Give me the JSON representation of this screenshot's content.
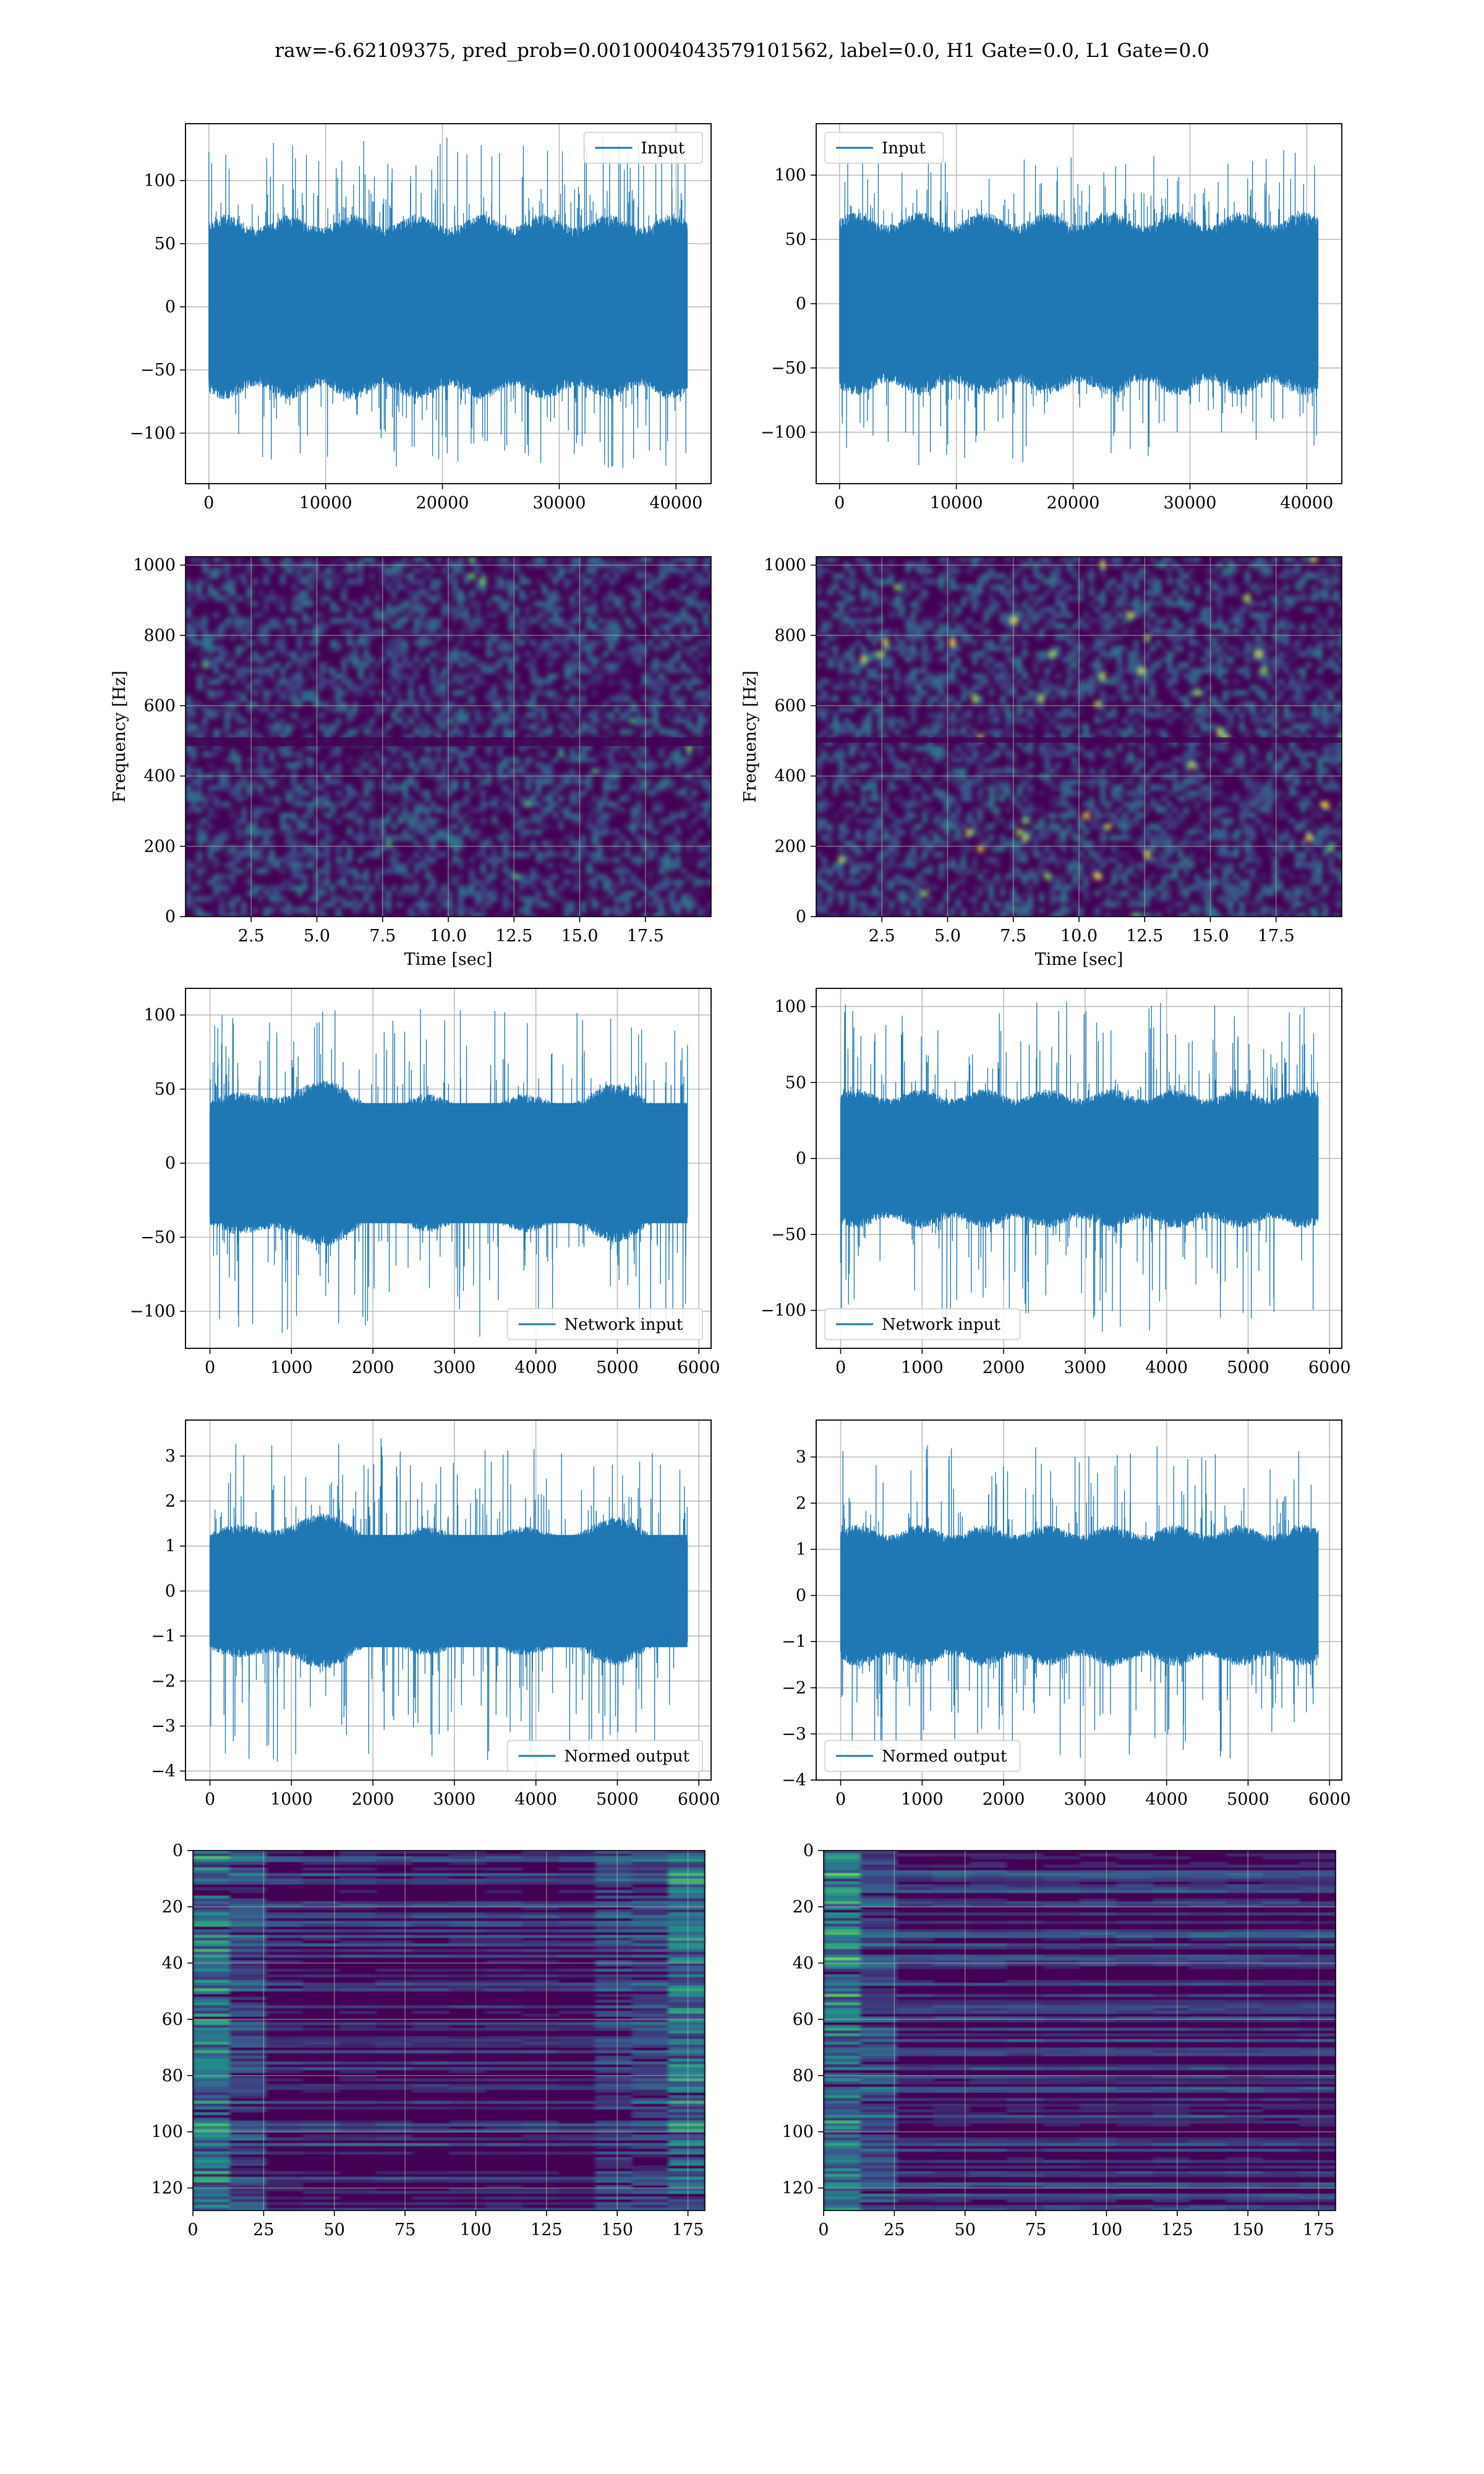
{
  "suptitle": "raw=-6.62109375, pred_prob=0.0010004043579101562, label=0.0, H1 Gate=0.0, L1 Gate=0.0",
  "colors": {
    "series": "#1f77b4",
    "grid": "#b0b0b0",
    "viridis_dark": "#440154",
    "viridis_mid": "#3b528b",
    "viridis_teal": "#21918c",
    "viridis_green": "#5ec962",
    "viridis_yellow": "#fde725"
  },
  "chart_data": [
    {
      "id": "h1-input",
      "type": "line",
      "legend": "Input",
      "legend_loc": "upper right",
      "grid": true,
      "xlim": [
        -2000,
        43000
      ],
      "ylim": [
        -140,
        145
      ],
      "xticks": [
        0,
        10000,
        20000,
        30000,
        40000
      ],
      "yticks": [
        -100,
        -50,
        0,
        50,
        100
      ],
      "x_range": [
        0,
        40960
      ],
      "band": [
        -72,
        72
      ],
      "spike_max": 135,
      "spike_min": -128,
      "xlabel": "",
      "ylabel": ""
    },
    {
      "id": "l1-input",
      "type": "line",
      "legend": "Input",
      "legend_loc": "upper left",
      "grid": true,
      "xlim": [
        -2000,
        43000
      ],
      "ylim": [
        -140,
        140
      ],
      "xticks": [
        0,
        10000,
        20000,
        30000,
        40000
      ],
      "yticks": [
        -100,
        -50,
        0,
        50,
        100
      ],
      "x_range": [
        0,
        40960
      ],
      "band": [
        -70,
        70
      ],
      "spike_max": 120,
      "spike_min": -128,
      "xlabel": "",
      "ylabel": ""
    },
    {
      "id": "h1-spectrogram",
      "type": "heatmap",
      "grid": true,
      "xlim": [
        0,
        20
      ],
      "ylim": [
        0,
        1024
      ],
      "xticks": [
        2.5,
        5.0,
        7.5,
        10.0,
        12.5,
        15.0,
        17.5
      ],
      "yticks": [
        0,
        200,
        400,
        600,
        800,
        1000
      ],
      "xlabel": "Time [sec]",
      "ylabel": "Frequency [Hz]",
      "colormap": "viridis",
      "dark_band_hz": [
        485,
        510
      ],
      "texture": "fine"
    },
    {
      "id": "l1-spectrogram",
      "type": "heatmap",
      "grid": true,
      "xlim": [
        0,
        20
      ],
      "ylim": [
        0,
        1024
      ],
      "xticks": [
        2.5,
        5.0,
        7.5,
        10.0,
        12.5,
        15.0,
        17.5
      ],
      "yticks": [
        0,
        200,
        400,
        600,
        800,
        1000
      ],
      "xlabel": "Time [sec]",
      "ylabel": "Frequency [Hz]",
      "colormap": "viridis",
      "dark_band_hz": [
        495,
        510
      ],
      "texture": "speckled"
    },
    {
      "id": "h1-network-input",
      "type": "line",
      "legend": "Network input",
      "legend_loc": "lower right",
      "grid": true,
      "xlim": [
        -300,
        6150
      ],
      "ylim": [
        -125,
        118
      ],
      "xticks": [
        0,
        1000,
        2000,
        3000,
        4000,
        5000,
        6000
      ],
      "yticks": [
        -100,
        -50,
        0,
        50,
        100
      ],
      "x_range": [
        0,
        5860
      ],
      "band": [
        -52,
        52
      ],
      "spike_max": 105,
      "spike_min": -120,
      "envelope": "bumps",
      "xlabel": "",
      "ylabel": ""
    },
    {
      "id": "l1-network-input",
      "type": "line",
      "legend": "Network input",
      "legend_loc": "lower left",
      "grid": true,
      "xlim": [
        -300,
        6150
      ],
      "ylim": [
        -125,
        112
      ],
      "xticks": [
        0,
        1000,
        2000,
        3000,
        4000,
        5000,
        6000
      ],
      "yticks": [
        -100,
        -50,
        0,
        50,
        100
      ],
      "x_range": [
        0,
        5860
      ],
      "band": [
        -45,
        45
      ],
      "spike_max": 104,
      "spike_min": -115,
      "envelope": "flat",
      "xlabel": "",
      "ylabel": ""
    },
    {
      "id": "h1-normed-output",
      "type": "line",
      "legend": "Normed output",
      "legend_loc": "lower right",
      "grid": true,
      "xlim": [
        -300,
        6150
      ],
      "ylim": [
        -4.2,
        3.8
      ],
      "xticks": [
        0,
        1000,
        2000,
        3000,
        4000,
        5000,
        6000
      ],
      "yticks": [
        -4,
        -3,
        -2,
        -1,
        0,
        1,
        2,
        3
      ],
      "x_range": [
        0,
        5860
      ],
      "band": [
        -1.6,
        1.6
      ],
      "spike_max": 3.4,
      "spike_min": -3.8,
      "envelope": "bumps",
      "xlabel": "",
      "ylabel": ""
    },
    {
      "id": "l1-normed-output",
      "type": "line",
      "legend": "Normed output",
      "legend_loc": "lower left",
      "grid": true,
      "xlim": [
        -300,
        6150
      ],
      "ylim": [
        -4.0,
        3.8
      ],
      "xticks": [
        0,
        1000,
        2000,
        3000,
        4000,
        5000,
        6000
      ],
      "yticks": [
        -4,
        -3,
        -2,
        -1,
        0,
        1,
        2,
        3
      ],
      "x_range": [
        0,
        5860
      ],
      "band": [
        -1.5,
        1.5
      ],
      "spike_max": 3.4,
      "spike_min": -3.6,
      "envelope": "flat",
      "xlabel": "",
      "ylabel": ""
    },
    {
      "id": "h1-feature-map",
      "type": "heatmap",
      "grid": true,
      "xlim": [
        0,
        181
      ],
      "ylim": [
        128,
        0
      ],
      "xticks": [
        0,
        25,
        50,
        75,
        100,
        125,
        150,
        175
      ],
      "yticks": [
        0,
        20,
        40,
        60,
        80,
        100,
        120
      ],
      "xlabel": "",
      "ylabel": "",
      "colormap": "viridis",
      "texture": "rows-bright-edges"
    },
    {
      "id": "l1-feature-map",
      "type": "heatmap",
      "grid": true,
      "xlim": [
        0,
        181
      ],
      "ylim": [
        128,
        0
      ],
      "xticks": [
        0,
        25,
        50,
        75,
        100,
        125,
        150,
        175
      ],
      "yticks": [
        0,
        20,
        40,
        60,
        80,
        100,
        120
      ],
      "xlabel": "",
      "ylabel": "",
      "colormap": "viridis",
      "texture": "rows-bright-left"
    }
  ]
}
